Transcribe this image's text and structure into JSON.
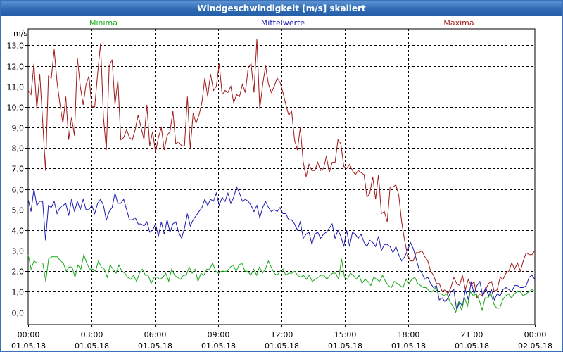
{
  "window": {
    "title": "Windgeschwindigkeit [m/s] skaliert"
  },
  "chart_data": {
    "type": "line",
    "title": "Windgeschwindigkeit [m/s] skaliert",
    "ylabel": "m/s",
    "xlabel": "",
    "ylim": [
      -0.6,
      13.8
    ],
    "xlim_hours": [
      0,
      24
    ],
    "grid": true,
    "y_ticks": [
      "0,0",
      "1,0",
      "2,0",
      "3,0",
      "4,0",
      "5,0",
      "6,0",
      "7,0",
      "8,0",
      "9,0",
      "10,0",
      "11,0",
      "12,0",
      "13,0"
    ],
    "x_ticks": [
      {
        "time": "00:00",
        "date": "01.05.18"
      },
      {
        "time": "03:00",
        "date": "01.05.18"
      },
      {
        "time": "06:00",
        "date": "01.05.18"
      },
      {
        "time": "09:00",
        "date": "01.05.18"
      },
      {
        "time": "12:00",
        "date": "01.05.18"
      },
      {
        "time": "15:00",
        "date": "01.05.18"
      },
      {
        "time": "18:00",
        "date": "01.05.18"
      },
      {
        "time": "21:00",
        "date": "01.05.18"
      },
      {
        "time": "00:00",
        "date": "02.05.18"
      }
    ],
    "legend": [
      {
        "name": "Minima",
        "color": "#1aa81a"
      },
      {
        "name": "Mittelwerte",
        "color": "#1c1cb0"
      },
      {
        "name": "Maxima",
        "color": "#a01818"
      }
    ],
    "sample_interval_hours": 0.1,
    "series": [
      {
        "name": "Maxima",
        "color": "#a01818",
        "values": [
          10.8,
          10.6,
          12.1,
          9.9,
          11.6,
          9.3,
          6.9,
          11.5,
          11.4,
          12.8,
          11.2,
          10.1,
          9.2,
          10.5,
          8.4,
          9.5,
          8.6,
          12.4,
          11.0,
          10.1,
          11.1,
          11.5,
          10.0,
          10.0,
          11.6,
          13.1,
          9.5,
          7.9,
          12.0,
          12.3,
          10.1,
          11.3,
          8.4,
          8.5,
          8.9,
          8.5,
          8.4,
          8.9,
          9.6,
          9.0,
          8.4,
          10.1,
          8.1,
          8.8,
          7.8,
          8.5,
          9.0,
          7.9,
          8.6,
          8.8,
          9.8,
          8.2,
          8.3,
          8.1,
          8.1,
          10.5,
          8.0,
          9.7,
          9.2,
          9.6,
          10.2,
          11.4,
          10.5,
          11.6,
          10.8,
          11.0,
          12.1,
          10.6,
          10.8,
          10.7,
          11.0,
          10.2,
          10.6,
          10.5,
          11.1,
          10.7,
          11.9,
          12.1,
          10.7,
          13.3,
          9.9,
          11.1,
          12.0,
          11.1,
          10.7,
          11.0,
          11.4,
          11.2,
          10.7,
          10.1,
          9.6,
          9.8,
          8.4,
          7.9,
          9.0,
          7.3,
          6.6,
          7.2,
          6.9,
          6.9,
          7.3,
          6.9,
          7.0,
          7.6,
          6.8,
          7.3,
          7.3,
          8.4,
          8.2,
          7.1,
          7.0,
          7.2,
          6.9,
          6.7,
          6.9,
          6.8,
          6.7,
          5.6,
          5.8,
          6.6,
          5.5,
          6.7,
          4.8,
          4.9,
          4.4,
          6.1,
          6.1,
          6.2,
          5.7,
          4.4,
          3.5,
          2.8,
          2.5,
          2.5,
          2.9,
          2.9,
          3.0,
          2.7,
          2.5,
          2.0,
          1.8,
          1.4,
          1.4,
          1.0,
          1.1,
          0.9,
          1.2,
          1.7,
          1.4,
          1.3,
          1.8,
          1.1,
          1.6,
          1.3,
          1.5,
          0.7,
          0.9,
          0.8,
          1.1,
          1.4,
          1.5,
          1.0,
          1.1,
          1.7,
          1.6,
          1.9,
          2.0,
          2.4,
          2.1,
          2.4,
          2.0,
          2.5,
          2.9,
          2.8,
          2.8,
          3.0
        ]
      },
      {
        "name": "Mittelwerte",
        "color": "#1c1cb0",
        "values": [
          5.5,
          4.9,
          6.0,
          5.2,
          5.4,
          5.4,
          3.5,
          5.2,
          5.1,
          5.4,
          4.8,
          5.1,
          5.2,
          5.3,
          4.7,
          5.5,
          4.9,
          5.4,
          5.0,
          5.5,
          5.0,
          5.0,
          5.2,
          4.8,
          5.3,
          5.5,
          5.2,
          4.5,
          4.9,
          5.1,
          5.8,
          5.3,
          5.3,
          5.5,
          5.0,
          4.5,
          4.5,
          4.6,
          4.3,
          4.3,
          4.2,
          4.4,
          3.9,
          4.0,
          4.3,
          3.7,
          4.4,
          3.8,
          4.5,
          3.9,
          4.3,
          4.4,
          3.9,
          3.6,
          4.1,
          4.8,
          4.2,
          4.5,
          4.7,
          4.9,
          5.1,
          5.5,
          5.2,
          5.5,
          5.4,
          5.8,
          5.2,
          5.6,
          5.4,
          5.8,
          5.3,
          5.6,
          6.1,
          5.8,
          5.4,
          5.5,
          5.4,
          5.2,
          4.9,
          5.2,
          4.6,
          5.1,
          5.4,
          5.1,
          4.9,
          5.0,
          4.9,
          5.1,
          4.8,
          4.8,
          4.5,
          4.5,
          4.3,
          4.0,
          4.4,
          3.6,
          3.8,
          3.9,
          3.3,
          3.8,
          3.9,
          3.6,
          3.8,
          3.9,
          4.1,
          4.3,
          3.6,
          4.0,
          3.7,
          3.2,
          4.0,
          3.2,
          3.9,
          3.8,
          3.6,
          3.8,
          3.4,
          3.2,
          3.5,
          3.4,
          3.2,
          3.7,
          3.0,
          3.3,
          3.3,
          3.2,
          2.9,
          3.2,
          2.8,
          2.5,
          2.7,
          3.0,
          3.4,
          3.1,
          2.6,
          2.1,
          1.9,
          1.6,
          1.7,
          1.4,
          1.2,
          1.3,
          0.6,
          0.7,
          0.5,
          0.7,
          1.0,
          1.1,
          0.1,
          0.5,
          0.3,
          1.1,
          0.6,
          1.5,
          0.9,
          1.3,
          1.5,
          0.8,
          1.2,
          0.8,
          1.1,
          0.6,
          0.9,
          0.8,
          1.1,
          1.2,
          1.1,
          1.0,
          1.3,
          1.3,
          1.2,
          1.2,
          1.3,
          1.7,
          1.8,
          1.6
        ]
      },
      {
        "name": "Minima",
        "color": "#1aa81a",
        "values": [
          2.8,
          2.1,
          2.5,
          2.4,
          2.4,
          2.4,
          1.5,
          2.6,
          2.7,
          2.7,
          2.7,
          2.5,
          2.4,
          2.0,
          2.2,
          2.2,
          1.7,
          2.3,
          2.1,
          2.8,
          2.4,
          2.1,
          2.1,
          2.0,
          2.5,
          2.2,
          2.1,
          1.7,
          2.3,
          2.1,
          1.9,
          2.3,
          2.0,
          1.9,
          1.7,
          1.6,
          1.8,
          1.5,
          1.9,
          2.1,
          1.8,
          1.8,
          1.4,
          1.7,
          1.7,
          1.6,
          1.7,
          1.9,
          1.5,
          2.1,
          1.8,
          1.7,
          1.6,
          1.8,
          1.8,
          2.2,
          1.9,
          2.1,
          1.5,
          1.9,
          1.8,
          2.1,
          2.1,
          2.4,
          2.0,
          1.9,
          2.0,
          2.0,
          2.0,
          2.2,
          2.3,
          2.0,
          2.3,
          2.4,
          2.0,
          2.0,
          1.8,
          2.1,
          1.8,
          2.2,
          1.9,
          2.1,
          2.5,
          2.2,
          1.9,
          1.8,
          2.0,
          2.1,
          1.8,
          1.9,
          1.9,
          2.0,
          1.8,
          1.7,
          1.8,
          1.6,
          1.8,
          1.5,
          1.6,
          1.7,
          1.8,
          1.8,
          1.6,
          1.8,
          1.9,
          1.9,
          1.6,
          2.6,
          1.7,
          1.6,
          1.9,
          1.8,
          1.6,
          1.8,
          1.4,
          1.6,
          1.5,
          1.3,
          1.7,
          1.6,
          1.5,
          1.8,
          1.5,
          1.3,
          1.2,
          1.5,
          1.4,
          1.3,
          1.2,
          1.6,
          1.4,
          1.6,
          1.7,
          1.4,
          1.3,
          1.2,
          1.2,
          1.0,
          1.0,
          1.2,
          0.9,
          0.9,
          0.8,
          0.9,
          0.5,
          0.3,
          0.0,
          0.5,
          0.1,
          0.7,
          0.3,
          1.0,
          0.8,
          0.9,
          0.6,
          0.1,
          0.7,
          0.7,
          0.9,
          0.4,
          0.2,
          0.2,
          0.6,
          0.8,
          0.9,
          0.7,
          0.9,
          1.0,
          1.0,
          0.8,
          0.9,
          1.0,
          1.1,
          1.0
        ]
      }
    ]
  }
}
